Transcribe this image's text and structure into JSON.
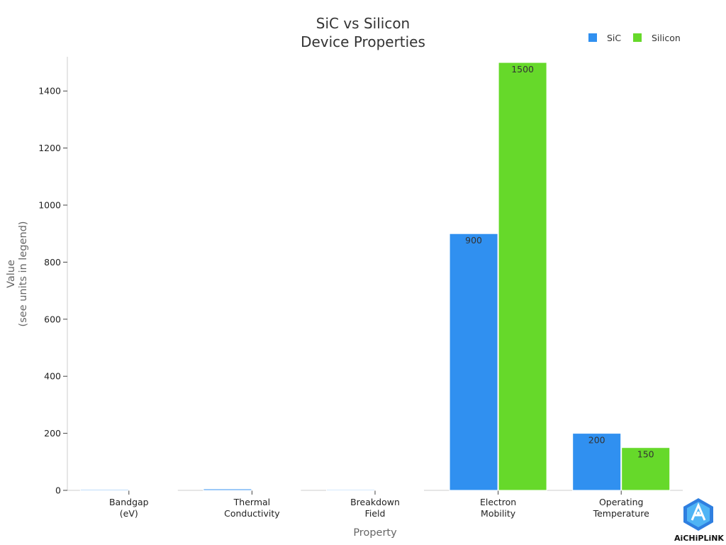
{
  "chart_data": {
    "type": "bar",
    "title": "SiC vs Silicon\nDevice Properties",
    "xlabel": "Property",
    "ylabel": "Value\n(see units in legend)",
    "categories": [
      "Bandgap\n(eV)",
      "Thermal\nConductivity",
      "Breakdown\nField",
      "Electron\nMobility",
      "Operating\nTemperature"
    ],
    "series": [
      {
        "name": "SiC",
        "color": "#3090f0",
        "values": [
          3.26,
          4.9,
          3,
          900,
          200
        ]
      },
      {
        "name": "Silicon",
        "color": "#66d92a",
        "values": [
          1.12,
          1.5,
          0.3,
          1500,
          150
        ]
      }
    ],
    "data_labels": [
      {
        "series": 1,
        "index": 3,
        "text": "1500"
      },
      {
        "series": 0,
        "index": 3,
        "text": "900"
      },
      {
        "series": 0,
        "index": 4,
        "text": "200"
      },
      {
        "series": 1,
        "index": 4,
        "text": "150"
      }
    ],
    "ylim": [
      0,
      1520
    ],
    "yticks": [
      0,
      200,
      400,
      600,
      800,
      1000,
      1200,
      1400
    ],
    "grid": false,
    "legend_position": "top-right"
  },
  "logo": {
    "text": "AiCHiPLiNK",
    "icon": "aichiplink-logo-icon"
  }
}
